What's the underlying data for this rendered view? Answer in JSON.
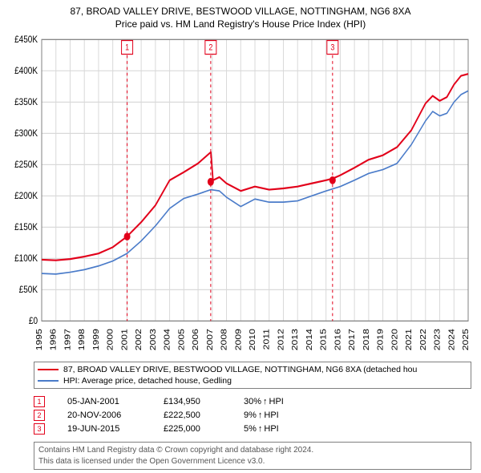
{
  "title": {
    "line1": "87, BROAD VALLEY DRIVE, BESTWOOD VILLAGE, NOTTINGHAM, NG6 8XA",
    "line2": "Price paid vs. HM Land Registry's House Price Index (HPI)"
  },
  "chart": {
    "type": "line",
    "background_color": "#ffffff",
    "grid_color": "#d9d9d9",
    "axis_color": "#808080",
    "tick_fontsize": 10,
    "title_fontsize": 12,
    "x": {
      "min": 1995,
      "max": 2025,
      "tick_step": 1,
      "labels": [
        "1995",
        "1996",
        "1997",
        "1998",
        "1999",
        "2000",
        "2001",
        "2002",
        "2003",
        "2004",
        "2005",
        "2006",
        "2007",
        "2008",
        "2009",
        "2010",
        "2011",
        "2012",
        "2013",
        "2014",
        "2015",
        "2016",
        "2017",
        "2018",
        "2019",
        "2020",
        "2021",
        "2022",
        "2023",
        "2024",
        "2025"
      ]
    },
    "y": {
      "min": 0,
      "max": 450000,
      "tick_step": 50000,
      "labels": [
        "£0",
        "£50K",
        "£100K",
        "£150K",
        "£200K",
        "£250K",
        "£300K",
        "£350K",
        "£400K",
        "£450K"
      ]
    },
    "series": [
      {
        "key": "price_paid",
        "label": "87, BROAD VALLEY DRIVE, BESTWOOD VILLAGE, NOTTINGHAM, NG6 8XA (detached hou",
        "color": "#e2001a",
        "line_width": 1.8,
        "points": [
          [
            1995,
            98000
          ],
          [
            1996,
            97000
          ],
          [
            1997,
            99000
          ],
          [
            1998,
            103000
          ],
          [
            1999,
            108000
          ],
          [
            2000,
            118000
          ],
          [
            2001,
            135000
          ],
          [
            2002,
            158000
          ],
          [
            2003,
            185000
          ],
          [
            2004,
            225000
          ],
          [
            2005,
            238000
          ],
          [
            2006,
            252000
          ],
          [
            2006.5,
            262000
          ],
          [
            2006.9,
            270000
          ],
          [
            2007.05,
            225000
          ],
          [
            2007.5,
            230000
          ],
          [
            2008,
            220000
          ],
          [
            2009,
            208000
          ],
          [
            2010,
            215000
          ],
          [
            2011,
            210000
          ],
          [
            2012,
            212000
          ],
          [
            2013,
            215000
          ],
          [
            2014,
            220000
          ],
          [
            2015,
            225000
          ],
          [
            2015.5,
            228000
          ],
          [
            2016,
            233000
          ],
          [
            2017,
            245000
          ],
          [
            2018,
            258000
          ],
          [
            2019,
            265000
          ],
          [
            2020,
            278000
          ],
          [
            2021,
            305000
          ],
          [
            2022,
            348000
          ],
          [
            2022.5,
            360000
          ],
          [
            2023,
            352000
          ],
          [
            2023.5,
            358000
          ],
          [
            2024,
            378000
          ],
          [
            2024.5,
            392000
          ],
          [
            2025,
            395000
          ]
        ]
      },
      {
        "key": "hpi",
        "label": "HPI: Average price, detached house, Gedling",
        "color": "#4a7bc9",
        "line_width": 1.4,
        "points": [
          [
            1995,
            76000
          ],
          [
            1996,
            75000
          ],
          [
            1997,
            78000
          ],
          [
            1998,
            82000
          ],
          [
            1999,
            88000
          ],
          [
            2000,
            96000
          ],
          [
            2001,
            108000
          ],
          [
            2002,
            128000
          ],
          [
            2003,
            152000
          ],
          [
            2004,
            180000
          ],
          [
            2005,
            196000
          ],
          [
            2006,
            203000
          ],
          [
            2006.9,
            210000
          ],
          [
            2007.5,
            208000
          ],
          [
            2008,
            198000
          ],
          [
            2009,
            183000
          ],
          [
            2010,
            195000
          ],
          [
            2011,
            190000
          ],
          [
            2012,
            190000
          ],
          [
            2013,
            192000
          ],
          [
            2014,
            200000
          ],
          [
            2015,
            208000
          ],
          [
            2016,
            215000
          ],
          [
            2017,
            225000
          ],
          [
            2018,
            236000
          ],
          [
            2019,
            242000
          ],
          [
            2020,
            252000
          ],
          [
            2021,
            282000
          ],
          [
            2022,
            320000
          ],
          [
            2022.5,
            335000
          ],
          [
            2023,
            328000
          ],
          [
            2023.5,
            332000
          ],
          [
            2024,
            350000
          ],
          [
            2024.5,
            362000
          ],
          [
            2025,
            368000
          ]
        ]
      }
    ],
    "markers": [
      {
        "n": "1",
        "x": 2001.01,
        "y": 134950,
        "color": "#e2001a",
        "dash": "3,3"
      },
      {
        "n": "2",
        "x": 2006.89,
        "y": 222500,
        "color": "#e2001a",
        "dash": "3,3"
      },
      {
        "n": "3",
        "x": 2015.46,
        "y": 225000,
        "color": "#e2001a",
        "dash": "3,3"
      }
    ]
  },
  "legend": {
    "border_color": "#808080"
  },
  "markers_table": [
    {
      "n": "1",
      "date": "05-JAN-2001",
      "price": "£134,950",
      "delta_pct": "30%",
      "delta_label": "HPI"
    },
    {
      "n": "2",
      "date": "20-NOV-2006",
      "price": "£222,500",
      "delta_pct": "9%",
      "delta_label": "HPI"
    },
    {
      "n": "3",
      "date": "19-JUN-2015",
      "price": "£225,000",
      "delta_pct": "5%",
      "delta_label": "HPI"
    }
  ],
  "marker_badge_color": "#e2001a",
  "license": {
    "line1": "Contains HM Land Registry data © Crown copyright and database right 2024.",
    "line2": "This data is licensed under the Open Government Licence v3.0."
  }
}
